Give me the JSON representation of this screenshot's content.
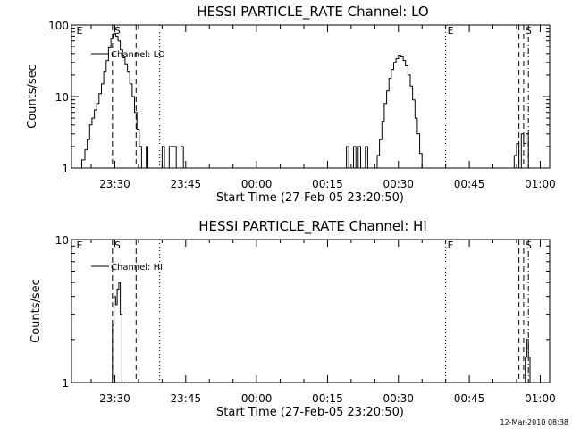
{
  "timestamp": "12-Mar-2010 08:38",
  "chart_data": [
    {
      "type": "line",
      "title": "HESSI PARTICLE_RATE Channel: LO",
      "xlabel": "Start Time (27-Feb-05 23:20:50)",
      "ylabel": "Counts/sec",
      "yscale": "log",
      "ylim": [
        1,
        100
      ],
      "yticks": [
        {
          "value": 1,
          "label": "1"
        },
        {
          "value": 10,
          "label": "10"
        },
        {
          "value": 100,
          "label": "100"
        }
      ],
      "xlim": [
        "23:20:50",
        "01:02:00"
      ],
      "xticks": [
        "23:30",
        "23:45",
        "00:00",
        "00:15",
        "00:30",
        "00:45",
        "01:00"
      ],
      "legend": "top-left",
      "series": [
        {
          "name": "Channel: LO",
          "x": [
            "23:22:10",
            "23:23:00",
            "23:23:40",
            "23:24:10",
            "23:24:40",
            "23:25:10",
            "23:25:40",
            "23:26:10",
            "23:26:40",
            "23:27:10",
            "23:27:40",
            "23:28:10",
            "23:28:40",
            "23:29:10",
            "23:29:40",
            "23:30:10",
            "23:30:40",
            "23:31:10",
            "23:31:40",
            "23:32:10",
            "23:32:40",
            "23:33:10",
            "23:33:40",
            "23:34:10",
            "23:34:40",
            "23:35:10",
            "23:35:40",
            "23:36:10",
            "23:36:40",
            "23:37:00",
            "23:37:30",
            "23:38:00",
            "23:38:30",
            "23:39:00",
            "23:39:30",
            "23:40:00",
            "23:40:30",
            "23:41:00",
            "23:41:30",
            "23:42:00",
            "23:42:30",
            "23:43:00",
            "23:43:30",
            "23:44:00",
            "23:44:30",
            "23:45:00",
            "23:45:30",
            "23:46:00",
            "23:46:30",
            "23:47:00",
            "23:47:30",
            "23:48:00",
            "00:18:30",
            "00:19:00",
            "00:19:30",
            "00:20:00",
            "00:20:30",
            "00:21:00",
            "00:21:30",
            "00:22:00",
            "00:22:30",
            "00:23:00",
            "00:23:30",
            "00:24:00",
            "00:24:30",
            "00:25:00",
            "00:25:30",
            "00:26:00",
            "00:26:30",
            "00:27:00",
            "00:27:30",
            "00:28:00",
            "00:28:30",
            "00:29:00",
            "00:29:30",
            "00:30:00",
            "00:30:30",
            "00:31:00",
            "00:31:30",
            "00:32:00",
            "00:32:30",
            "00:33:00",
            "00:33:30",
            "00:34:00",
            "00:34:30",
            "00:35:00",
            "00:35:30",
            "00:36:00",
            "00:36:30",
            "00:37:00",
            "00:37:30",
            "00:38:00",
            "00:38:30",
            "00:39:00",
            "00:39:30",
            "00:54:00",
            "00:54:30",
            "00:55:00",
            "00:55:30",
            "00:56:00",
            "00:56:30",
            "00:57:00",
            "00:57:30"
          ],
          "values": [
            1,
            1.3,
            1.8,
            2.5,
            4,
            5,
            6.5,
            8,
            11,
            15,
            22,
            32,
            48,
            65,
            75,
            70,
            60,
            45,
            35,
            28,
            22,
            15,
            10,
            6,
            3.5,
            2,
            1,
            1,
            2,
            1,
            1,
            1,
            1,
            1,
            1,
            2,
            1,
            1,
            2,
            2,
            2,
            1,
            1,
            2,
            1,
            1,
            1,
            1,
            1,
            1,
            1,
            1,
            1,
            2,
            1,
            1,
            2,
            1,
            2,
            1,
            1,
            2,
            1,
            1,
            1,
            1,
            1.5,
            2.5,
            4.5,
            8,
            12,
            18,
            24,
            30,
            34,
            37,
            36,
            32,
            27,
            20,
            14,
            9,
            5,
            3,
            1.6,
            1,
            1,
            1,
            1,
            1,
            1,
            1,
            1,
            1,
            1,
            1,
            1.5,
            2.2,
            1,
            3,
            2.2,
            3,
            1
          ]
        }
      ],
      "markers": [
        {
          "time": "23:21:30",
          "label": "E",
          "style": "none"
        },
        {
          "time": "23:29:30",
          "label": "S",
          "style": "dashed"
        },
        {
          "time": "23:34:30",
          "label": "",
          "style": "dashed"
        },
        {
          "time": "23:39:30",
          "label": "",
          "style": "dotted"
        },
        {
          "time": "00:40:00",
          "label": "E",
          "style": "dotted"
        },
        {
          "time": "00:55:30",
          "label": "",
          "style": "dashed"
        },
        {
          "time": "00:56:30",
          "label": "S",
          "style": "dashed"
        },
        {
          "time": "00:57:30",
          "label": "",
          "style": "dashdot"
        }
      ]
    },
    {
      "type": "line",
      "title": "HESSI PARTICLE_RATE Channel: HI",
      "xlabel": "Start Time (27-Feb-05 23:20:50)",
      "ylabel": "Counts/sec",
      "yscale": "log",
      "ylim": [
        1,
        10
      ],
      "yticks": [
        {
          "value": 1,
          "label": "1"
        },
        {
          "value": 10,
          "label": "10"
        }
      ],
      "xlim": [
        "23:20:50",
        "01:02:00"
      ],
      "xticks": [
        "23:30",
        "23:45",
        "00:00",
        "00:15",
        "00:30",
        "00:45",
        "01:00"
      ],
      "legend": "top-left",
      "series": [
        {
          "name": "Channel: HI",
          "x": [
            "23:28:50",
            "23:29:10",
            "23:29:30",
            "23:29:50",
            "23:30:10",
            "23:30:30",
            "23:30:50",
            "23:31:10",
            "23:31:30",
            "23:31:50",
            "23:32:10",
            "00:56:30",
            "00:56:50",
            "00:57:10",
            "00:57:30",
            "00:57:50"
          ],
          "values": [
            1,
            1,
            2.5,
            4,
            3.5,
            4.5,
            5,
            3,
            1,
            1,
            1,
            1,
            1.5,
            2,
            1.5,
            1
          ]
        }
      ],
      "markers": [
        {
          "time": "23:21:30",
          "label": "E",
          "style": "none"
        },
        {
          "time": "23:29:30",
          "label": "S",
          "style": "dashed"
        },
        {
          "time": "23:34:30",
          "label": "",
          "style": "dashed"
        },
        {
          "time": "23:39:30",
          "label": "",
          "style": "dotted"
        },
        {
          "time": "00:40:00",
          "label": "E",
          "style": "dotted"
        },
        {
          "time": "00:55:30",
          "label": "",
          "style": "dashed"
        },
        {
          "time": "00:56:30",
          "label": "S",
          "style": "dashed"
        },
        {
          "time": "00:57:30",
          "label": "",
          "style": "dashdot"
        }
      ]
    }
  ]
}
